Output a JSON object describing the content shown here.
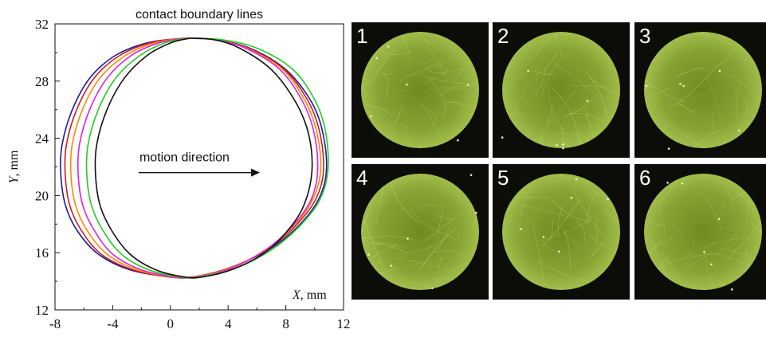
{
  "chart_data": {
    "type": "line",
    "title": "contact boundary lines",
    "xlabel_var": "X",
    "xlabel_unit": ", mm",
    "ylabel_var": "Y",
    "ylabel_unit": ", mm",
    "xlim": [
      -8,
      12
    ],
    "ylim": [
      12,
      32
    ],
    "xticks": [
      -8,
      -4,
      0,
      4,
      8,
      12
    ],
    "yticks": [
      12,
      16,
      20,
      24,
      28,
      32
    ],
    "annotation": "motion direction",
    "arrow": {
      "from": [
        -2.2,
        21.6
      ],
      "to": [
        6.2,
        21.6
      ]
    },
    "series": [
      {
        "color": "#1a1aa6",
        "points": [
          [
            1.0,
            31.0
          ],
          [
            -1.5,
            30.7
          ],
          [
            -3.8,
            29.8
          ],
          [
            -5.6,
            28.2
          ],
          [
            -6.8,
            26.0
          ],
          [
            -7.5,
            23.6
          ],
          [
            -7.6,
            21.6
          ],
          [
            -7.3,
            19.4
          ],
          [
            -6.5,
            17.6
          ],
          [
            -5.0,
            15.9
          ],
          [
            -2.8,
            14.8
          ],
          [
            0.0,
            14.3
          ],
          [
            1.5,
            14.3
          ],
          [
            4.0,
            14.9
          ],
          [
            6.8,
            16.2
          ],
          [
            8.8,
            17.8
          ],
          [
            10.2,
            19.6
          ],
          [
            10.8,
            21.6
          ],
          [
            10.6,
            24.2
          ],
          [
            9.8,
            26.5
          ],
          [
            8.0,
            28.8
          ],
          [
            5.5,
            30.3
          ],
          [
            3.0,
            30.9
          ],
          [
            1.0,
            31.0
          ]
        ]
      },
      {
        "color": "#cc1c1c",
        "points": [
          [
            1.0,
            31.0
          ],
          [
            -1.3,
            30.7
          ],
          [
            -3.5,
            29.8
          ],
          [
            -5.3,
            28.2
          ],
          [
            -6.5,
            26.0
          ],
          [
            -7.2,
            23.6
          ],
          [
            -7.3,
            21.6
          ],
          [
            -7.0,
            19.4
          ],
          [
            -6.2,
            17.6
          ],
          [
            -4.8,
            15.9
          ],
          [
            -2.6,
            14.8
          ],
          [
            0.0,
            14.3
          ],
          [
            1.5,
            14.3
          ],
          [
            4.0,
            14.9
          ],
          [
            6.7,
            16.2
          ],
          [
            8.6,
            17.8
          ],
          [
            10.0,
            19.6
          ],
          [
            10.6,
            21.6
          ],
          [
            10.4,
            24.2
          ],
          [
            9.6,
            26.5
          ],
          [
            7.9,
            28.8
          ],
          [
            5.4,
            30.3
          ],
          [
            3.0,
            30.9
          ],
          [
            1.0,
            31.0
          ]
        ]
      },
      {
        "color": "#ff8800",
        "points": [
          [
            1.1,
            31.0
          ],
          [
            -1.0,
            30.7
          ],
          [
            -3.1,
            29.8
          ],
          [
            -4.9,
            28.2
          ],
          [
            -6.1,
            26.0
          ],
          [
            -6.8,
            23.6
          ],
          [
            -6.9,
            21.6
          ],
          [
            -6.6,
            19.4
          ],
          [
            -5.8,
            17.6
          ],
          [
            -4.4,
            15.9
          ],
          [
            -2.3,
            14.8
          ],
          [
            0.2,
            14.3
          ],
          [
            1.6,
            14.3
          ],
          [
            4.1,
            14.9
          ],
          [
            6.6,
            16.2
          ],
          [
            8.5,
            17.8
          ],
          [
            9.8,
            19.6
          ],
          [
            10.4,
            21.6
          ],
          [
            10.2,
            24.2
          ],
          [
            9.4,
            26.5
          ],
          [
            7.8,
            28.8
          ],
          [
            5.3,
            30.3
          ],
          [
            3.0,
            30.9
          ],
          [
            1.1,
            31.0
          ]
        ]
      },
      {
        "color": "#e020e0",
        "points": [
          [
            1.2,
            31.0
          ],
          [
            -0.7,
            30.7
          ],
          [
            -2.7,
            29.8
          ],
          [
            -4.4,
            28.2
          ],
          [
            -5.6,
            26.0
          ],
          [
            -6.3,
            23.6
          ],
          [
            -6.4,
            21.6
          ],
          [
            -6.1,
            19.4
          ],
          [
            -5.3,
            17.6
          ],
          [
            -4.0,
            15.9
          ],
          [
            -2.0,
            14.8
          ],
          [
            0.4,
            14.3
          ],
          [
            1.8,
            14.3
          ],
          [
            4.2,
            14.9
          ],
          [
            6.6,
            16.2
          ],
          [
            8.4,
            17.8
          ],
          [
            9.7,
            19.6
          ],
          [
            10.2,
            21.6
          ],
          [
            10.0,
            24.2
          ],
          [
            9.2,
            26.5
          ],
          [
            7.6,
            28.8
          ],
          [
            5.2,
            30.3
          ],
          [
            3.0,
            30.9
          ],
          [
            1.2,
            31.0
          ]
        ]
      },
      {
        "color": "#22cc22",
        "points": [
          [
            1.3,
            31.0
          ],
          [
            -0.3,
            30.7
          ],
          [
            -2.1,
            29.8
          ],
          [
            -3.8,
            28.2
          ],
          [
            -5.0,
            26.0
          ],
          [
            -5.7,
            23.6
          ],
          [
            -5.8,
            21.6
          ],
          [
            -5.5,
            19.4
          ],
          [
            -4.7,
            17.6
          ],
          [
            -3.4,
            15.9
          ],
          [
            -1.5,
            14.8
          ],
          [
            0.8,
            14.3
          ],
          [
            2.0,
            14.3
          ],
          [
            4.5,
            14.9
          ],
          [
            7.0,
            16.2
          ],
          [
            8.9,
            17.8
          ],
          [
            10.3,
            19.6
          ],
          [
            10.9,
            21.6
          ],
          [
            10.8,
            24.2
          ],
          [
            10.1,
            26.5
          ],
          [
            8.5,
            28.8
          ],
          [
            6.0,
            30.3
          ],
          [
            3.5,
            30.9
          ],
          [
            1.3,
            31.0
          ]
        ]
      },
      {
        "color": "#111111",
        "points": [
          [
            1.4,
            31.0
          ],
          [
            0.1,
            30.7
          ],
          [
            -1.6,
            29.8
          ],
          [
            -3.2,
            28.2
          ],
          [
            -4.4,
            26.0
          ],
          [
            -5.1,
            23.6
          ],
          [
            -5.2,
            21.6
          ],
          [
            -4.9,
            19.4
          ],
          [
            -4.1,
            17.6
          ],
          [
            -2.8,
            15.9
          ],
          [
            -1.0,
            14.8
          ],
          [
            1.0,
            14.3
          ],
          [
            2.2,
            14.3
          ],
          [
            4.2,
            14.8
          ],
          [
            6.4,
            15.9
          ],
          [
            8.0,
            17.4
          ],
          [
            9.2,
            19.2
          ],
          [
            9.8,
            21.6
          ],
          [
            9.6,
            24.2
          ],
          [
            8.7,
            26.5
          ],
          [
            7.0,
            28.8
          ],
          [
            4.8,
            30.3
          ],
          [
            3.0,
            30.9
          ],
          [
            1.4,
            31.0
          ]
        ]
      }
    ]
  },
  "panels": [
    {
      "label": "1",
      "photo_center_frac": [
        0.5,
        0.5
      ]
    },
    {
      "label": "2",
      "photo_center_frac": [
        0.5,
        0.5
      ]
    },
    {
      "label": "3",
      "photo_center_frac": [
        0.5,
        0.5
      ]
    },
    {
      "label": "4",
      "photo_center_frac": [
        0.5,
        0.5
      ]
    },
    {
      "label": "5",
      "photo_center_frac": [
        0.5,
        0.5
      ]
    },
    {
      "label": "6",
      "photo_center_frac": [
        0.5,
        0.5
      ]
    }
  ],
  "colors": {
    "photo_fill": "#7f9a2c",
    "photo_bg": "#0c0d08"
  }
}
